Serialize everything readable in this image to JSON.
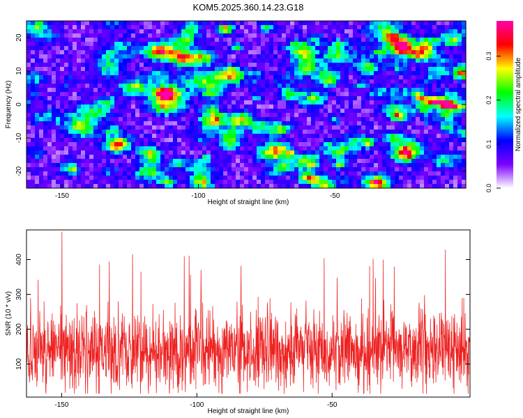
{
  "title": "KOM5.2025.360.14.23.G18",
  "chart_data": [
    {
      "type": "heatmap",
      "xlabel": "Height of straight line (km)",
      "ylabel": "Frequency (Hz)",
      "xlim": [
        -163,
        -2
      ],
      "ylim": [
        -25,
        25
      ],
      "x_ticks": [
        -150,
        -100,
        -50
      ],
      "y_ticks": [
        -20,
        -10,
        0,
        10,
        20
      ],
      "colorbar": {
        "label": "Normalized spectral amplitude",
        "range": [
          0.0,
          0.38
        ],
        "ticks": [
          0.0,
          0.1,
          0.2,
          0.3
        ],
        "tick_labels": [
          "0.0",
          "0.1",
          "0.2",
          "0.3"
        ],
        "colors": [
          "#ffffff",
          "#7a00ff",
          "#0000ff",
          "#00ffff",
          "#00ff00",
          "#ffff00",
          "#ff0000",
          "#ff00aa"
        ]
      },
      "background_level": 0.06,
      "signal_track": {
        "x": [
          -20,
          -17,
          -14,
          -11,
          -8,
          -5,
          -2
        ],
        "freq": [
          2.0,
          1.5,
          1.0,
          0.5,
          0.0,
          -0.5,
          -1.0
        ],
        "peak_x": -11,
        "peak_amplitude": 0.36
      }
    },
    {
      "type": "line",
      "xlabel": "Height of straight line (km)",
      "ylabel": "SNR (10 * v/v)",
      "xlim": [
        -163,
        1
      ],
      "ylim": [
        5,
        485
      ],
      "x_ticks": [
        -150,
        -100,
        -50
      ],
      "y_ticks": [
        100,
        200,
        300,
        400
      ],
      "series": [
        {
          "name": "SNR",
          "color": "#ee2222",
          "x_start": -163,
          "x_end": 1,
          "n_points": 1640,
          "mean": 140,
          "max": 480
        }
      ]
    }
  ]
}
